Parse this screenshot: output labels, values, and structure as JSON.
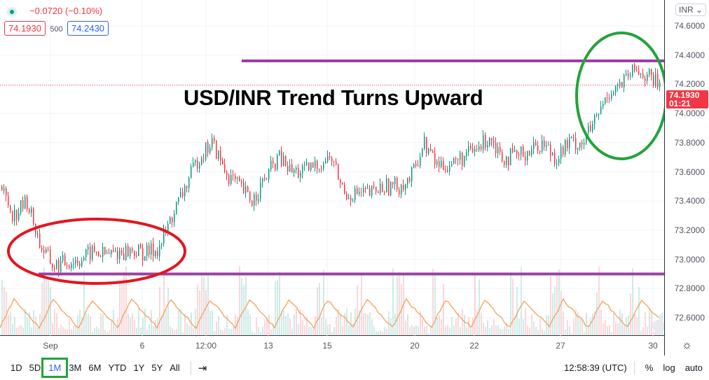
{
  "symbol_legend": {
    "change": "−0.0720 (−0.10%)",
    "bid": "74.1930",
    "spread": "500",
    "ask": "74.2430",
    "status_color": "#089981"
  },
  "annotation_title": "USD/INR Trend Turns Upward",
  "currency_button": "INR ⌄",
  "price_axis": {
    "ticks": [
      "74.6000",
      "74.4000",
      "74.2000",
      "74.0000",
      "73.8000",
      "73.6000",
      "73.4000",
      "73.2000",
      "73.0000",
      "72.8000",
      "72.6000"
    ],
    "current_price": "74.1930",
    "countdown": "01:21"
  },
  "time_axis": {
    "ticks": [
      "Sep",
      "6",
      "12:00",
      "13",
      "15",
      "20",
      "22",
      "27",
      "30"
    ]
  },
  "bottom_bar": {
    "ranges": [
      "1D",
      "5D",
      "1M",
      "3M",
      "6M",
      "YTD",
      "1Y",
      "5Y",
      "All"
    ],
    "active_range": "1M",
    "clock": "12:58:39 (UTC)",
    "percent": "%",
    "log": "log",
    "auto": "auto"
  },
  "chart_data": {
    "type": "candlestick",
    "ylim": [
      72.5,
      74.7
    ],
    "closes": [
      73.5,
      73.3,
      73.4,
      73.1,
      72.95,
      72.98,
      73.0,
      73.05,
      73.03,
      73.05,
      73.06,
      73.04,
      73.08,
      73.3,
      73.5,
      73.7,
      73.8,
      73.6,
      73.5,
      73.4,
      73.55,
      73.7,
      73.6,
      73.6,
      73.65,
      73.7,
      73.45,
      73.45,
      73.45,
      73.5,
      73.5,
      73.55,
      73.8,
      73.65,
      73.65,
      73.7,
      73.75,
      73.85,
      73.7,
      73.7,
      73.75,
      73.8,
      73.7,
      73.8,
      73.8,
      73.95,
      74.15,
      74.2,
      74.3,
      74.25,
      74.19
    ],
    "horizontal_lines": [
      74.36,
      72.9
    ],
    "line_color": "#9c3fa5",
    "up_color": "#089981",
    "down_color": "#f23645",
    "oscillator_color": "#f5a05a",
    "ellipse_colors": [
      "#e3161f",
      "#22a33a"
    ]
  }
}
